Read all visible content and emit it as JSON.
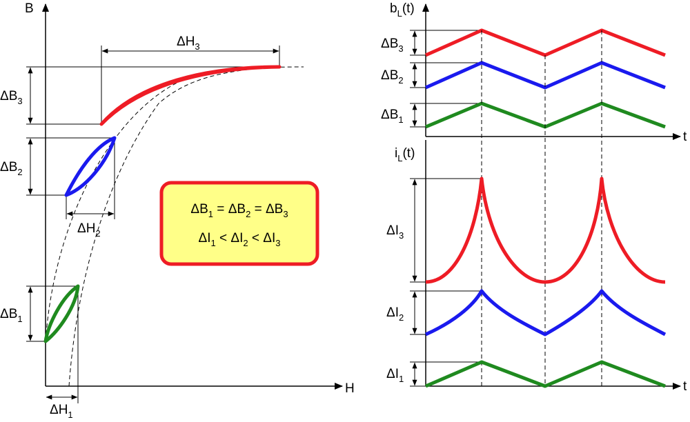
{
  "colors": {
    "red": "#ee1c25",
    "blue": "#1a1aee",
    "green": "#1f8a1f",
    "box_fill": "#ffff88",
    "box_border": "#ee1c25"
  },
  "left_plot": {
    "y_axis_label": "B",
    "x_axis_label": "H",
    "dimensions": {
      "dB3": {
        "base": "ΔB",
        "sub": "3"
      },
      "dB2": {
        "base": "ΔB",
        "sub": "2"
      },
      "dB1": {
        "base": "ΔB",
        "sub": "1"
      },
      "dH3": {
        "base": "ΔH",
        "sub": "3"
      },
      "dH2": {
        "base": "ΔH",
        "sub": "2"
      },
      "dH1": {
        "base": "ΔH",
        "sub": "1"
      }
    },
    "loops": [
      {
        "name": "loop-3",
        "color": "red"
      },
      {
        "name": "loop-2",
        "color": "blue"
      },
      {
        "name": "loop-1",
        "color": "green"
      }
    ]
  },
  "info_box": {
    "line1": {
      "t1": "ΔB",
      "s1": "1",
      "op1": " = ",
      "t2": "ΔB",
      "s2": "2",
      "op2": " = ",
      "t3": "ΔB",
      "s3": "3"
    },
    "line2": {
      "t1": "ΔI",
      "s1": "1",
      "op1": " < ",
      "t2": "ΔI",
      "s2": "2",
      "op2": " < ",
      "t3": "ΔI",
      "s3": "3"
    }
  },
  "right_top": {
    "y_axis_label": {
      "base": "b",
      "sub": "L",
      "tail": "(t)"
    },
    "x_axis_label": "t",
    "dimensions": {
      "dB3": {
        "base": "ΔB",
        "sub": "3"
      },
      "dB2": {
        "base": "ΔB",
        "sub": "2"
      },
      "dB1": {
        "base": "ΔB",
        "sub": "1"
      }
    }
  },
  "right_bottom": {
    "y_axis_label": {
      "base": "i",
      "sub": "L",
      "tail": "(t)"
    },
    "x_axis_label": "t",
    "dimensions": {
      "dI3": {
        "base": "ΔI",
        "sub": "3"
      },
      "dI2": {
        "base": "ΔI",
        "sub": "2"
      },
      "dI1": {
        "base": "ΔI",
        "sub": "1"
      }
    }
  }
}
